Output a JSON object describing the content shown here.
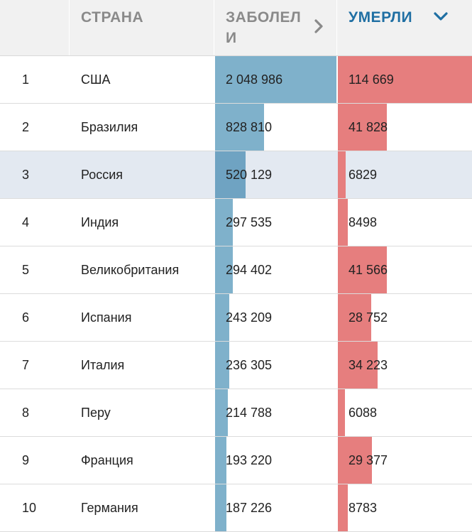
{
  "header": {
    "rank": "",
    "country": "СТРАНА",
    "cases": "ЗАБОЛЕЛИ",
    "deaths": "УМЕРЛИ"
  },
  "colors": {
    "cases_bar": "#7fb1cb",
    "deaths_bar": "#e67e7e",
    "active_header": "#1f6fa3",
    "highlight_row": "#e3e9f1"
  },
  "max": {
    "cases": 2048986,
    "deaths": 114669
  },
  "rows": [
    {
      "rank": "1",
      "country": "США",
      "cases": "2 048 986",
      "cases_value": 2048986,
      "deaths": "114 669",
      "deaths_value": 114669
    },
    {
      "rank": "2",
      "country": "Бразилия",
      "cases": "828 810",
      "cases_value": 828810,
      "deaths": "41 828",
      "deaths_value": 41828
    },
    {
      "rank": "3",
      "country": "Россия",
      "cases": "520 129",
      "cases_value": 520129,
      "deaths": "6829",
      "deaths_value": 6829,
      "highlight": true
    },
    {
      "rank": "4",
      "country": "Индия",
      "cases": "297 535",
      "cases_value": 297535,
      "deaths": "8498",
      "deaths_value": 8498
    },
    {
      "rank": "5",
      "country": "Великобритания",
      "cases": "294 402",
      "cases_value": 294402,
      "deaths": "41 566",
      "deaths_value": 41566
    },
    {
      "rank": "6",
      "country": "Испания",
      "cases": "243 209",
      "cases_value": 243209,
      "deaths": "28 752",
      "deaths_value": 28752
    },
    {
      "rank": "7",
      "country": "Италия",
      "cases": "236 305",
      "cases_value": 236305,
      "deaths": "34 223",
      "deaths_value": 34223
    },
    {
      "rank": "8",
      "country": "Перу",
      "cases": "214 788",
      "cases_value": 214788,
      "deaths": "6088",
      "deaths_value": 6088
    },
    {
      "rank": "9",
      "country": "Франция",
      "cases": "193 220",
      "cases_value": 193220,
      "deaths": "29 377",
      "deaths_value": 29377
    },
    {
      "rank": "10",
      "country": "Германия",
      "cases": "187 226",
      "cases_value": 187226,
      "deaths": "8783",
      "deaths_value": 8783
    }
  ]
}
